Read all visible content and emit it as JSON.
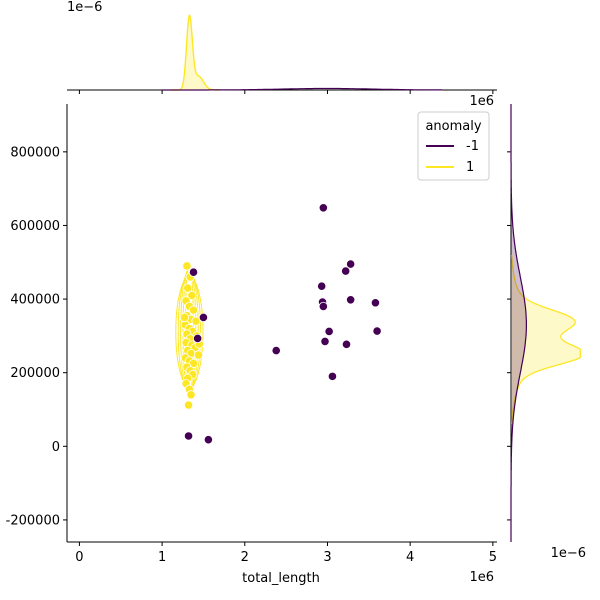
{
  "chart_data": {
    "type": "scatter",
    "subtype": "jointplot with marginal KDE",
    "xlabel": "total_length",
    "ylabel": "",
    "x_offset_label": "1e6",
    "y_offset_label": "",
    "top_marginal_offset_label": "1e−6",
    "right_marginal_offset_label": "1e−6",
    "xlim": [
      -0.15,
      5.05
    ],
    "x_ticks": [
      0,
      1,
      2,
      3,
      4,
      5
    ],
    "x_tick_labels": [
      "0",
      "1",
      "2",
      "3",
      "4",
      "5"
    ],
    "ylim": [
      -260000,
      930000
    ],
    "y_ticks": [
      -200000,
      0,
      200000,
      400000,
      600000,
      800000
    ],
    "y_tick_labels": [
      "-200000",
      "0",
      "200000",
      "400000",
      "600000",
      "800000"
    ],
    "grid": false,
    "legend": {
      "title": "anomaly",
      "placement": "top-right",
      "entries": [
        {
          "label": "-1",
          "color": "#440154"
        },
        {
          "label": "1",
          "color": "#fde725"
        }
      ]
    },
    "series": [
      {
        "name": "-1",
        "color": "#440154",
        "points": [
          [
            1.32,
            28000
          ],
          [
            1.56,
            18000
          ],
          [
            1.38,
            473000
          ],
          [
            1.5,
            350000
          ],
          [
            1.43,
            293000
          ],
          [
            2.38,
            260000
          ],
          [
            2.95,
            648000
          ],
          [
            2.93,
            435000
          ],
          [
            2.94,
            392000
          ],
          [
            2.95,
            380000
          ],
          [
            3.02,
            312000
          ],
          [
            2.97,
            285000
          ],
          [
            3.06,
            190000
          ],
          [
            3.22,
            476000
          ],
          [
            3.28,
            495000
          ],
          [
            3.28,
            398000
          ],
          [
            3.23,
            277000
          ],
          [
            3.58,
            390000
          ],
          [
            3.6,
            313000
          ]
        ]
      },
      {
        "name": "1",
        "color": "#fde725",
        "points": [
          [
            1.3,
            490000
          ],
          [
            1.34,
            460000
          ],
          [
            1.31,
            430000
          ],
          [
            1.36,
            410000
          ],
          [
            1.29,
            395000
          ],
          [
            1.33,
            380000
          ],
          [
            1.38,
            370000
          ],
          [
            1.3,
            355000
          ],
          [
            1.35,
            345000
          ],
          [
            1.41,
            340000
          ],
          [
            1.28,
            330000
          ],
          [
            1.33,
            320000
          ],
          [
            1.37,
            312000
          ],
          [
            1.3,
            305000
          ],
          [
            1.42,
            300000
          ],
          [
            1.34,
            292000
          ],
          [
            1.29,
            282000
          ],
          [
            1.36,
            275000
          ],
          [
            1.4,
            268000
          ],
          [
            1.31,
            260000
          ],
          [
            1.35,
            252000
          ],
          [
            1.44,
            248000
          ],
          [
            1.28,
            240000
          ],
          [
            1.33,
            232000
          ],
          [
            1.38,
            225000
          ],
          [
            1.3,
            215000
          ],
          [
            1.34,
            205000
          ],
          [
            1.37,
            195000
          ],
          [
            1.31,
            185000
          ],
          [
            1.29,
            170000
          ],
          [
            1.33,
            155000
          ],
          [
            1.35,
            140000
          ],
          [
            1.32,
            112000
          ],
          [
            1.45,
            278000
          ],
          [
            1.27,
            350000
          ]
        ]
      }
    ],
    "marginal_x_kde": [
      {
        "name": "-1",
        "color": "#440154",
        "peak_x": 3.0,
        "relative_height": 0.02
      },
      {
        "name": "1",
        "color": "#fde725",
        "peak_x": 1.33,
        "relative_height": 1.0
      }
    ],
    "marginal_y_kde": [
      {
        "name": "-1",
        "color": "#440154",
        "peak_y": 330000,
        "relative_width": 0.2
      },
      {
        "name": "1",
        "color": "#fde725",
        "peak_y": 250000,
        "relative_width": 0.9
      }
    ]
  }
}
